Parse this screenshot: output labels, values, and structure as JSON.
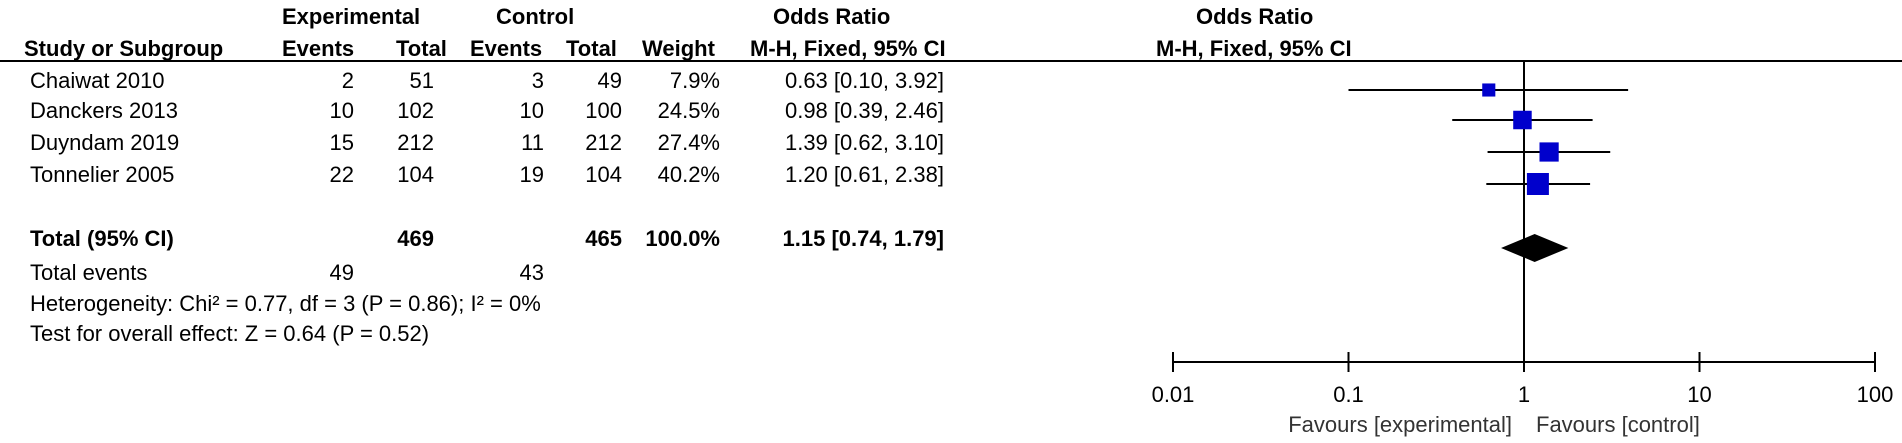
{
  "header": {
    "experimental": "Experimental",
    "control": "Control",
    "odds_ratio_table": "Odds Ratio",
    "odds_ratio_plot": "Odds Ratio",
    "study_col": "Study or Subgroup",
    "events_exp": "Events",
    "total_exp": "Total",
    "events_ctl": "Events",
    "total_ctl": "Total",
    "weight": "Weight",
    "method_table": "M-H, Fixed, 95% CI",
    "method_plot": "M-H, Fixed, 95% CI"
  },
  "studies": [
    {
      "name": "Chaiwat 2010",
      "exp_events": "2",
      "exp_total": "51",
      "ctl_events": "3",
      "ctl_total": "49",
      "weight": "7.9%",
      "or_text": "0.63 [0.10, 3.92]"
    },
    {
      "name": "Danckers 2013",
      "exp_events": "10",
      "exp_total": "102",
      "ctl_events": "10",
      "ctl_total": "100",
      "weight": "24.5%",
      "or_text": "0.98 [0.39, 2.46]"
    },
    {
      "name": "Duyndam 2019",
      "exp_events": "15",
      "exp_total": "212",
      "ctl_events": "11",
      "ctl_total": "212",
      "weight": "27.4%",
      "or_text": "1.39 [0.62, 3.10]"
    },
    {
      "name": "Tonnelier 2005",
      "exp_events": "22",
      "exp_total": "104",
      "ctl_events": "19",
      "ctl_total": "104",
      "weight": "40.2%",
      "or_text": "1.20 [0.61, 2.38]"
    }
  ],
  "total": {
    "label": "Total (95% CI)",
    "exp_total": "469",
    "ctl_total": "465",
    "weight": "100.0%",
    "or_text": "1.15 [0.74, 1.79]"
  },
  "total_events": {
    "label": "Total events",
    "exp": "49",
    "ctl": "43"
  },
  "heterogeneity": "Heterogeneity: Chi² = 0.77, df = 3 (P = 0.86); I² = 0%",
  "overall_effect": "Test for overall effect: Z = 0.64 (P = 0.52)",
  "chart_data": {
    "type": "scatter",
    "title": "Odds Ratio",
    "subtitle": "M-H, Fixed, 95% CI",
    "x_scale": "log",
    "xlim": [
      0.01,
      100
    ],
    "x_ticks": [
      0.01,
      0.1,
      1,
      10,
      100
    ],
    "x_tick_labels": [
      "0.01",
      "0.1",
      "1",
      "10",
      "100"
    ],
    "reference_line": 1,
    "favours_left": "Favours [experimental]",
    "favours_right": "Favours [control]",
    "points": [
      {
        "study": "Chaiwat 2010",
        "or": 0.63,
        "lo": 0.1,
        "hi": 3.92,
        "weight": 7.9
      },
      {
        "study": "Danckers 2013",
        "or": 0.98,
        "lo": 0.39,
        "hi": 2.46,
        "weight": 24.5
      },
      {
        "study": "Duyndam 2019",
        "or": 1.39,
        "lo": 0.62,
        "hi": 3.1,
        "weight": 27.4
      },
      {
        "study": "Tonnelier 2005",
        "or": 1.2,
        "lo": 0.61,
        "hi": 2.38,
        "weight": 40.2
      }
    ],
    "pooled": {
      "or": 1.15,
      "lo": 0.74,
      "hi": 1.79
    },
    "colors": {
      "marker": "#0000cc",
      "diamond": "#000000",
      "line": "#000000"
    }
  }
}
